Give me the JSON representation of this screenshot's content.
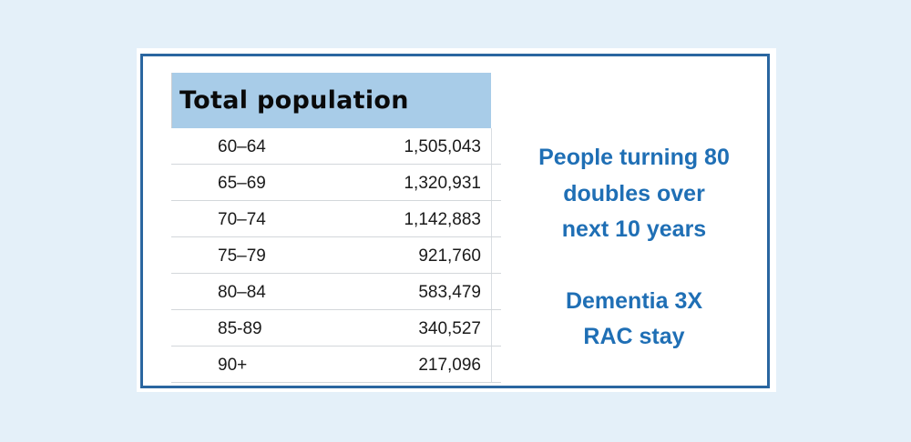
{
  "table": {
    "header": "Total population",
    "rows": [
      {
        "age_group": "60–64",
        "population": "1,505,043"
      },
      {
        "age_group": "65–69",
        "population": "1,320,931"
      },
      {
        "age_group": "70–74",
        "population": "1,142,883"
      },
      {
        "age_group": "75–79",
        "population": "921,760"
      },
      {
        "age_group": "80–84",
        "population": "583,479"
      },
      {
        "age_group": "85-89",
        "population": "340,527"
      },
      {
        "age_group": "90+",
        "population": "217,096"
      }
    ]
  },
  "callout": {
    "line1": "People turning 80",
    "line2": "doubles over",
    "line3": "next 10 years",
    "line4": "Dementia 3X",
    "line5": "RAC stay"
  },
  "colors": {
    "background": "#E4F0F9",
    "frame_border": "#2A66A0",
    "header_fill": "#A8CCE8",
    "callout_text": "#1F6FB5"
  }
}
